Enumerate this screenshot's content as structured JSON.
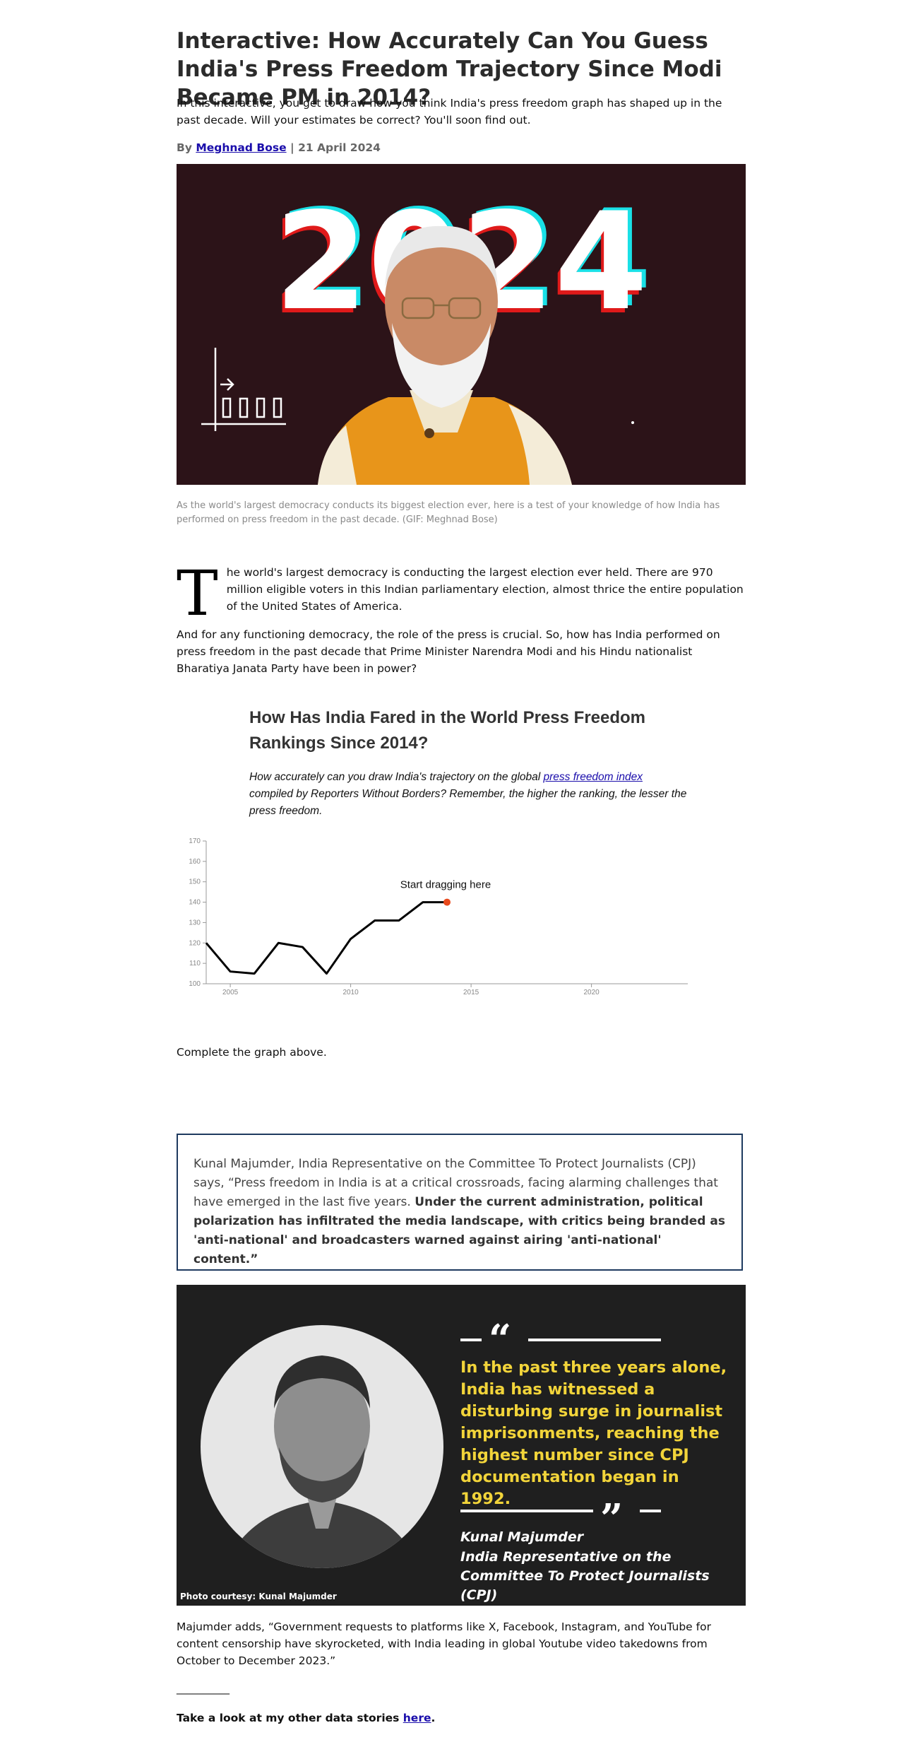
{
  "article": {
    "title": "Interactive: How Accurately Can You Guess India's Press Freedom Trajectory Since Modi Became PM in 2014?",
    "dek": "In this interactive, you get to draw how you think India's press freedom graph has shaped up in the past decade. Will your estimates be correct? You'll soon find out.",
    "byline_prefix": "By ",
    "author": "Meghnad Bose",
    "byline_sep": " | ",
    "date": "21 April 2024"
  },
  "hero": {
    "year_text": "2024",
    "caption": "As the world's largest democracy conducts its biggest election ever, here is a test of your knowledge of how India has performed on press freedom in the past decade. (GIF: Meghnad Bose)"
  },
  "body": {
    "dropcap": "T",
    "para1_rest": "he world's largest democracy is conducting the largest election ever held. There are 970 million eligible voters in this Indian parliamentary election, almost thrice the entire population of the United States of America.",
    "para2": "And for any functioning democracy, the role of the press is crucial. So, how has India performed on press freedom in the past decade that Prime Minister Narendra Modi and his Hindu nationalist Bharatiya Janata Party have been in power?"
  },
  "chart_section": {
    "title": "How Has India Fared in the World Press Freedom Rankings Since 2014?",
    "sub_before": "How accurately can you draw India's trajectory on the global ",
    "sub_link": "press freedom index",
    "sub_after": " compiled by Reporters Without Borders? Remember, the higher the ranking, the lesser the press freedom.",
    "drag_hint": "Start dragging here",
    "complete_text": "Complete the graph above."
  },
  "chart_data": {
    "type": "line",
    "title": "How Has India Fared in the World Press Freedom Rankings Since 2014?",
    "xlabel": "",
    "ylabel": "",
    "xlim": [
      2004,
      2024
    ],
    "ylim": [
      100,
      170
    ],
    "x_ticks": [
      2005,
      2010,
      2015,
      2020
    ],
    "y_ticks": [
      100,
      110,
      120,
      130,
      140,
      150,
      160,
      170
    ],
    "grid": false,
    "series": [
      {
        "x": [
          2004,
          2005,
          2006,
          2007,
          2008,
          2009,
          2010,
          2011,
          2012,
          2013,
          2014
        ],
        "y": [
          120,
          106,
          105,
          120,
          118,
          105,
          122,
          131,
          131,
          140,
          140
        ]
      }
    ],
    "line_color": "#000000",
    "handle_color": "#e8491d"
  },
  "quote_box": {
    "intro": "Kunal Majumder, India Representative on the Committee To Protect Journalists (CPJ) says, “Press freedom in India is at a critical crossroads, facing alarming challenges that have emerged in the last five years. ",
    "bold": "Under the current administration, political polarization has infiltrated the media landscape, with critics being branded as 'anti-national' and broadcasters warned against airing 'anti-national' content.”"
  },
  "quote_panel": {
    "quote": "In the past three years alone, India has witnessed a disturbing surge in journalist imprisonments, reaching the highest number since CPJ documentation began in 1992.",
    "name": "Kunal Majumder",
    "role": "India Representative on the Committee To Protect Journalists (CPJ)",
    "photo_credit": "Photo courtesy: Kunal Majumder",
    "quote_color": "#f2d43a"
  },
  "closing": {
    "para": "Majumder adds, “Government requests to platforms like X, Facebook, Instagram, and YouTube for content censorship have skyrocketed, with India leading in global Youtube video takedowns from October to December 2023.”",
    "divider": "__________",
    "other_prefix": "Take a look at my other data stories ",
    "other_link": "here",
    "other_suffix": "."
  }
}
